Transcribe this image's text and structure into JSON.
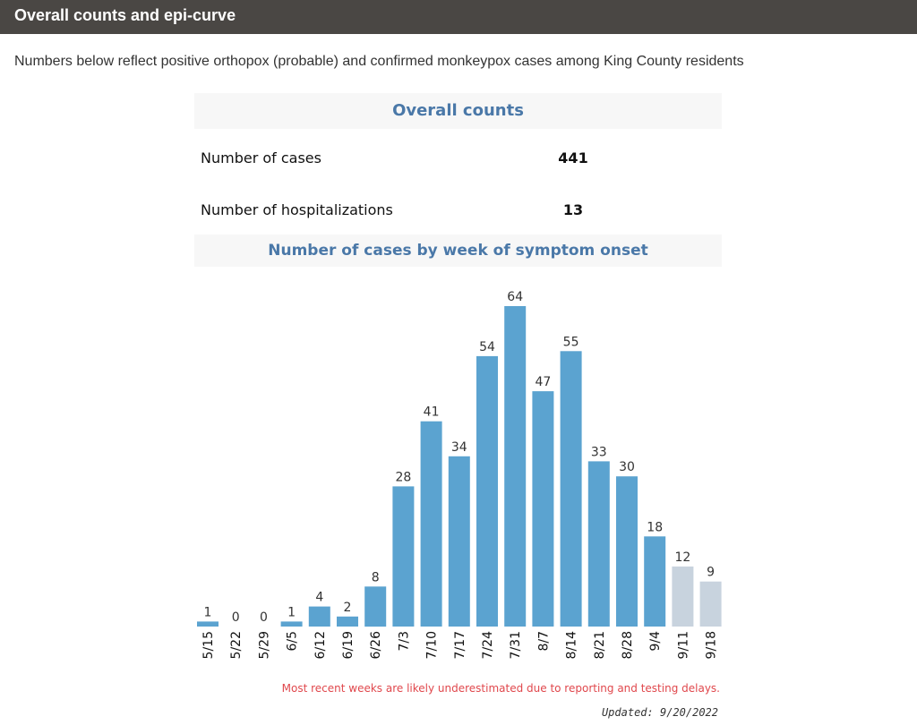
{
  "section": {
    "title": "Overall counts and epi-curve"
  },
  "intro": "Numbers below reflect positive orthopox (probable) and confirmed monkeypox cases among King County residents",
  "overall_counts": {
    "heading": "Overall counts",
    "rows": [
      {
        "label": "Number of cases",
        "value": "441"
      },
      {
        "label": "Number of hospitalizations",
        "value": "13"
      }
    ]
  },
  "colors": {
    "bar": "#5ba3d0",
    "bar_recent": "#c8d3de",
    "heading": "#4a78a8",
    "note": "#e0474c"
  },
  "chart_data": {
    "type": "bar",
    "title": "Number of cases by week of symptom onset",
    "categories": [
      "5/15",
      "5/22",
      "5/29",
      "6/5",
      "6/12",
      "6/19",
      "6/26",
      "7/3",
      "7/10",
      "7/17",
      "7/24",
      "7/31",
      "8/7",
      "8/14",
      "8/21",
      "8/28",
      "9/4",
      "9/11",
      "9/18"
    ],
    "values": [
      1,
      0,
      0,
      1,
      4,
      2,
      8,
      28,
      41,
      34,
      54,
      64,
      47,
      55,
      33,
      30,
      18,
      12,
      9
    ],
    "recent_weeks": [
      "9/11",
      "9/18"
    ],
    "data_labels": true,
    "ylim": [
      0,
      64
    ],
    "grid": false,
    "xlabel": "",
    "ylabel": ""
  },
  "note": "Most recent weeks are likely underestimated due to reporting and testing delays.",
  "updated": "Updated: 9/20/2022"
}
